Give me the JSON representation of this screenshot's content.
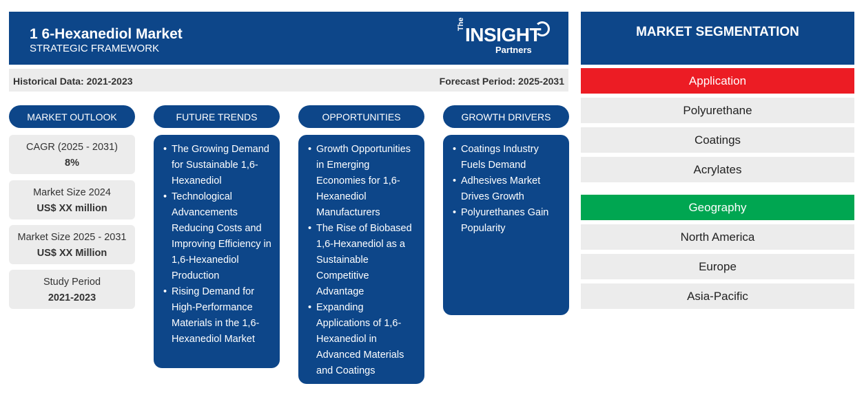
{
  "header": {
    "title": "1 6-Hexanediol Market",
    "subtitle": "STRATEGIC FRAMEWORK",
    "logo": {
      "the": "The",
      "main": "INSIGHT",
      "partners": "Partners"
    }
  },
  "periods": {
    "historical": "Historical Data: 2021-2023",
    "forecast": "Forecast Period: 2025-2031"
  },
  "columns": {
    "outlook": "MARKET OUTLOOK",
    "trends": "FUTURE TRENDS",
    "opportunities": "OPPORTUNITIES",
    "drivers": "GROWTH DRIVERS"
  },
  "stats": [
    {
      "label": "CAGR (2025 - 2031)",
      "value": "8%"
    },
    {
      "label": "Market Size 2024",
      "value": "US$ XX million"
    },
    {
      "label": "Market Size 2025 - 2031",
      "value": "US$ XX Million"
    },
    {
      "label": "Study Period",
      "value": "2021-2023"
    }
  ],
  "trends": [
    "The Growing Demand for Sustainable 1,6-Hexanediol",
    "Technological Advancements Reducing Costs and Improving Efficiency in 1,6-Hexanediol Production",
    "Rising Demand for High-Performance Materials in the 1,6-Hexanediol Market"
  ],
  "opportunities": [
    "Growth Opportunities in Emerging Economies for 1,6-Hexanediol Manufacturers",
    "The Rise of Biobased 1,6-Hexanediol as a Sustainable Competitive Advantage",
    "Expanding Applications of 1,6-Hexanediol in Advanced Materials and Coatings"
  ],
  "drivers": [
    "Coatings Industry Fuels Demand",
    "Adhesives Market Drives Growth",
    "Polyurethanes Gain Popularity"
  ],
  "segmentation": {
    "title": "MARKET SEGMENTATION",
    "application": {
      "label": "Application",
      "color": "#ec1c24",
      "items": [
        "Polyurethane",
        "Coatings",
        "Acrylates"
      ]
    },
    "geography": {
      "label": "Geography",
      "color": "#00a651",
      "items": [
        "North America",
        "Europe",
        "Asia-Pacific"
      ]
    }
  }
}
